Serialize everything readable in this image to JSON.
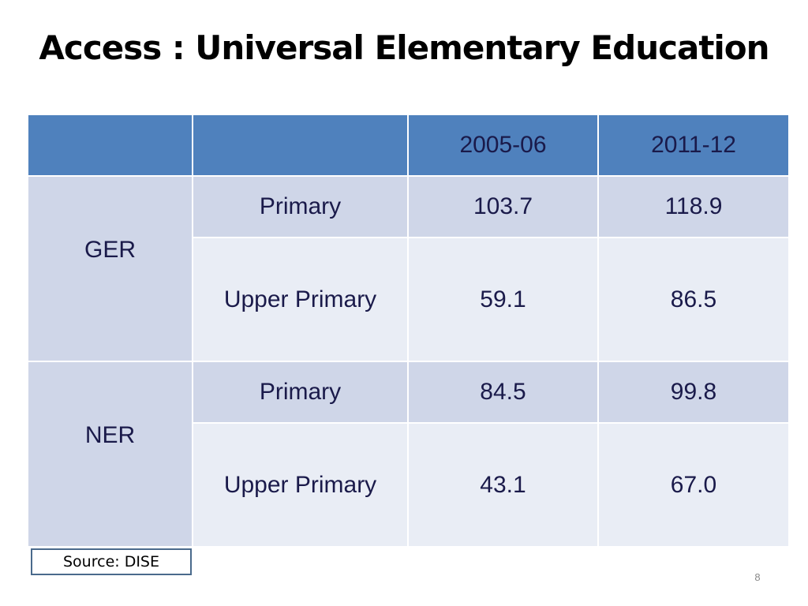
{
  "slide": {
    "title": "Access : Universal Elementary Education",
    "source": "Source: DISE",
    "page_number": "8"
  },
  "table": {
    "headers": [
      "",
      "",
      "2005-06",
      "2011-12"
    ],
    "groups": [
      {
        "label": "GER",
        "rows": [
          {
            "level": "Primary",
            "values": [
              "103.7",
              "118.9"
            ]
          },
          {
            "level": "Upper Primary",
            "values": [
              "59.1",
              "86.5"
            ]
          }
        ]
      },
      {
        "label": "NER",
        "rows": [
          {
            "level": "Primary",
            "values": [
              "84.5",
              "99.8"
            ]
          },
          {
            "level": "Upper Primary",
            "values": [
              "43.1",
              "67.0"
            ]
          }
        ]
      }
    ]
  },
  "colors": {
    "header_fill": "#4f81bd",
    "band_dark": "#cfd6e8",
    "band_light": "#e9edf5",
    "text": "#1a1a4a"
  }
}
